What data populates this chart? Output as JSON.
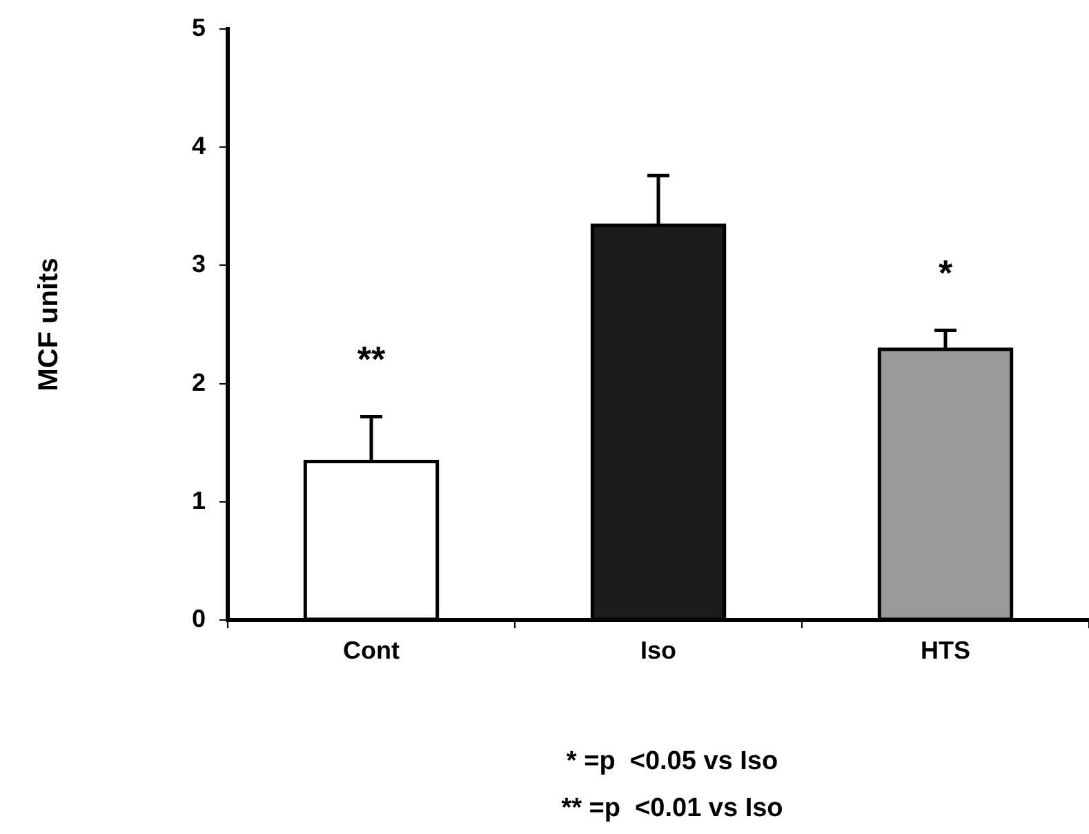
{
  "chart_data": {
    "type": "bar",
    "ylabel": "MCF units",
    "categories": [
      "Cont",
      "Iso",
      "HTS"
    ],
    "values": [
      1.34,
      3.34,
      2.29
    ],
    "errors": [
      0.38,
      0.42,
      0.16
    ],
    "colors": [
      "#ffffff",
      "#1c1c1c",
      "#9a9a9a"
    ],
    "ylim": [
      0,
      5
    ],
    "yticks": [
      0,
      1,
      2,
      3,
      4,
      5
    ],
    "annotations": [
      "**",
      "*",
      "* =p  <0.05 vs Iso",
      "** =p  <0.01 vs Iso"
    ]
  }
}
